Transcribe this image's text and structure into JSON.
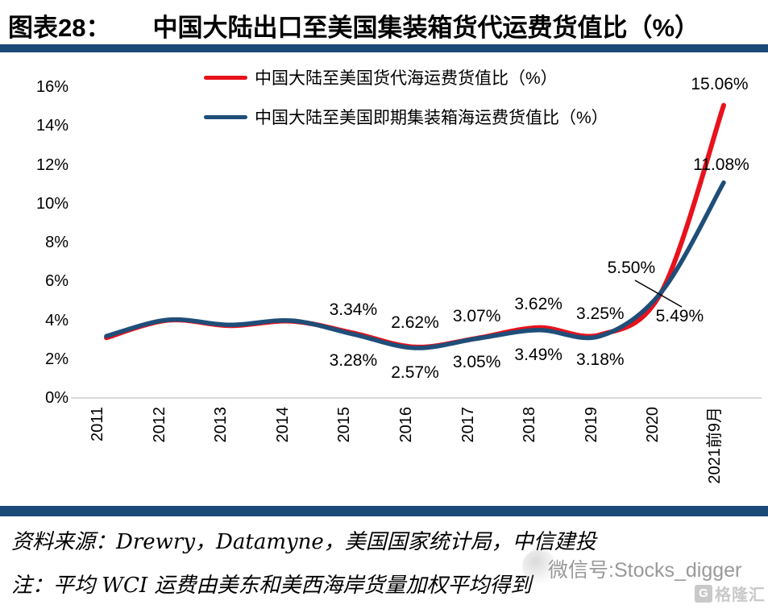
{
  "figure": {
    "label": "图表28：",
    "title": "中国大陆出口至美国集装箱货代运费货值比（%）"
  },
  "chart_data": {
    "type": "line",
    "categories": [
      "2011",
      "2012",
      "2013",
      "2014",
      "2015",
      "2016",
      "2017",
      "2018",
      "2019",
      "2020",
      "2021前9月"
    ],
    "series": [
      {
        "name": "中国大陆至美国货代海运费货值比（%）",
        "color": "#e8121d",
        "values": [
          3.1,
          4.0,
          3.72,
          3.95,
          3.34,
          2.62,
          3.07,
          3.62,
          3.25,
          5.5,
          15.06
        ],
        "labels": [
          null,
          null,
          null,
          null,
          "3.34%",
          "2.62%",
          "3.07%",
          "3.62%",
          "3.25%",
          "5.50%",
          "15.06%"
        ]
      },
      {
        "name": "中国大陆至美国即期集装箱海运费货值比（%）",
        "color": "#1f4e79",
        "values": [
          3.18,
          4.02,
          3.76,
          3.98,
          3.28,
          2.57,
          3.05,
          3.49,
          3.18,
          5.49,
          11.08
        ],
        "labels": [
          null,
          null,
          null,
          null,
          "3.28%",
          "2.57%",
          "3.05%",
          "3.49%",
          "3.18%",
          "5.49%",
          "11.08%"
        ]
      }
    ],
    "y_ticks": [
      "16%",
      "14%",
      "12%",
      "10%",
      "8%",
      "6%",
      "4%",
      "2%",
      "0%"
    ],
    "ylim": [
      0,
      16
    ],
    "grid": false,
    "legend_position": "top",
    "annotation_callout": "5.50%"
  },
  "footer": {
    "source": "资料来源：Drewry，Datamyne，美国国家统计局，中信建投",
    "note": "注：平均 WCI 运费由美东和美西海岸货量加权平均得到"
  },
  "watermark": {
    "text": "微信号:Stocks_digger",
    "logo_glyph": "G",
    "logo_text": "格隆汇"
  },
  "colors": {
    "accent_bar": "#1c4a78",
    "red_line": "#e8121d",
    "blue_line": "#1f4e79",
    "axis_line": "#d9d9d9"
  }
}
